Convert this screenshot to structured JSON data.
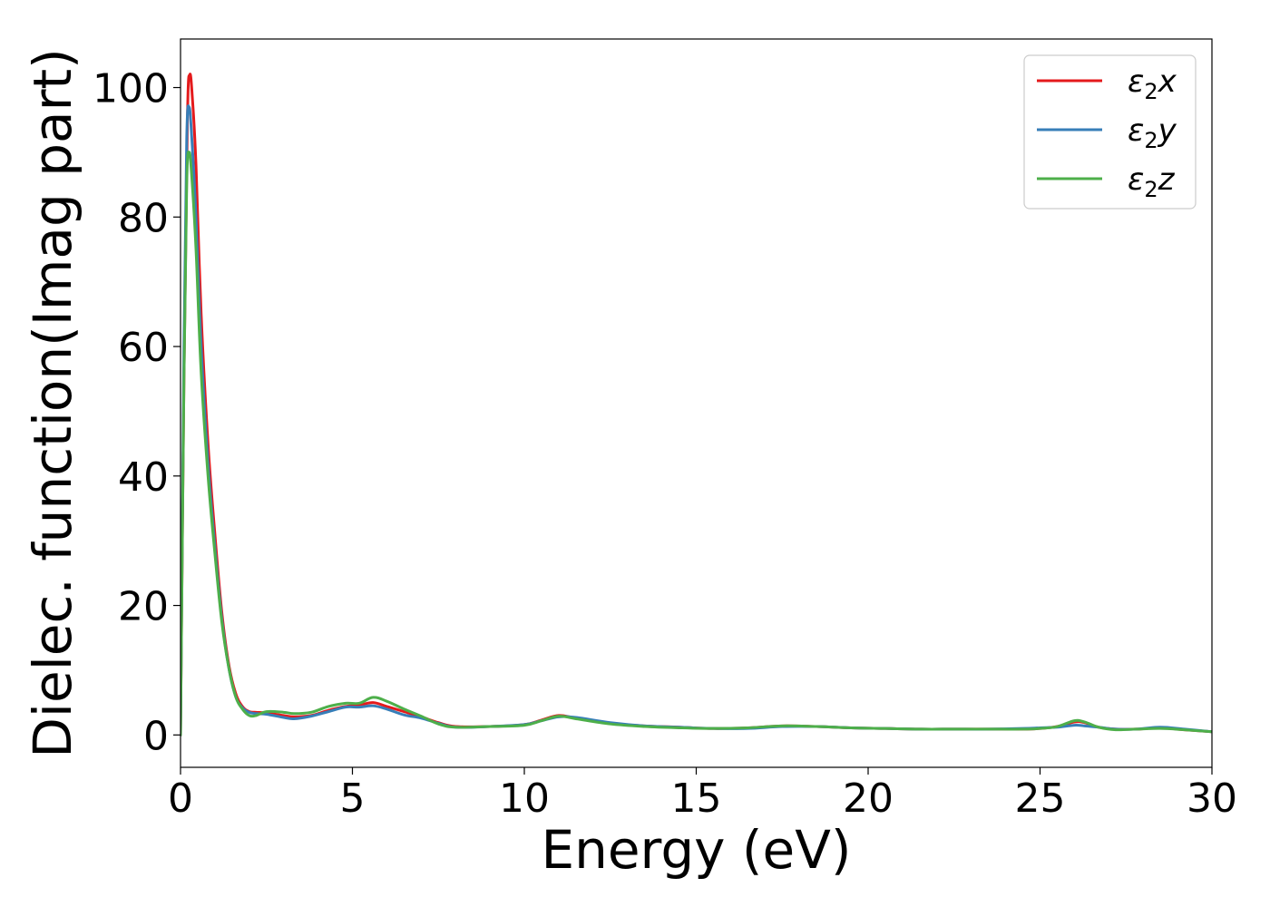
{
  "chart_data": {
    "type": "line",
    "title": "",
    "xlabel": "Energy (eV)",
    "ylabel": "Dielec. function(Imag part)",
    "xlim": [
      0,
      30
    ],
    "ylim": [
      -5,
      107.5
    ],
    "xticks": [
      0,
      5,
      10,
      15,
      20,
      25,
      30
    ],
    "yticks": [
      0,
      20,
      40,
      60,
      80,
      100
    ],
    "xtick_labels": [
      "0",
      "5",
      "10",
      "15",
      "20",
      "25",
      "30"
    ],
    "ytick_labels": [
      "0",
      "20",
      "40",
      "60",
      "80",
      "100"
    ],
    "grid": false,
    "legend_position": "top-right",
    "legend_labels": [
      "ε2x",
      "ε2y",
      "ε2z"
    ],
    "series": [
      {
        "name": "ε2x",
        "color": "#e41a1c",
        "x": [
          0.0,
          0.1,
          0.2,
          0.27,
          0.35,
          0.45,
          0.6,
          0.8,
          1.0,
          1.2,
          1.4,
          1.6,
          1.8,
          2.0,
          2.2,
          2.5,
          3.0,
          3.3,
          3.8,
          4.3,
          4.8,
          5.2,
          5.6,
          6.0,
          6.5,
          7.0,
          7.5,
          8.0,
          9.0,
          10.0,
          10.5,
          11.0,
          11.5,
          12.5,
          13.5,
          14.5,
          15.5,
          16.5,
          17.5,
          18.5,
          19.5,
          20.5,
          21.5,
          22.5,
          23.5,
          24.5,
          25.0,
          25.5,
          26.0,
          26.3,
          26.7,
          27.2,
          27.8,
          28.5,
          29.2,
          30.0
        ],
        "y": [
          0,
          55,
          95,
          102,
          98,
          88,
          65,
          45,
          31,
          19,
          11,
          6.5,
          4.4,
          3.6,
          3.5,
          3.4,
          3.0,
          2.8,
          3.0,
          3.8,
          4.4,
          4.6,
          5.0,
          4.4,
          3.6,
          2.8,
          1.9,
          1.3,
          1.3,
          1.6,
          2.3,
          3.0,
          2.6,
          1.8,
          1.4,
          1.2,
          1.0,
          1.1,
          1.4,
          1.3,
          1.1,
          1.0,
          0.9,
          0.9,
          0.9,
          0.9,
          1.0,
          1.3,
          2.0,
          1.9,
          1.2,
          0.9,
          0.9,
          1.1,
          0.8,
          0.5
        ]
      },
      {
        "name": "ε2y",
        "color": "#377eb8",
        "x": [
          0.0,
          0.1,
          0.18,
          0.25,
          0.33,
          0.45,
          0.6,
          0.8,
          1.0,
          1.2,
          1.4,
          1.6,
          1.8,
          2.0,
          2.2,
          2.5,
          3.0,
          3.3,
          3.8,
          4.3,
          4.8,
          5.2,
          5.6,
          6.0,
          6.5,
          7.0,
          7.5,
          8.0,
          9.0,
          10.0,
          10.5,
          11.0,
          11.5,
          12.5,
          13.5,
          14.5,
          15.5,
          16.5,
          17.5,
          18.5,
          19.5,
          20.5,
          21.5,
          22.5,
          23.5,
          24.5,
          25.0,
          25.5,
          26.0,
          26.3,
          26.7,
          27.2,
          27.8,
          28.5,
          29.2,
          30.0
        ],
        "y": [
          0,
          60,
          92,
          97,
          92,
          80,
          60,
          42,
          29,
          18,
          10.5,
          6.0,
          4.2,
          3.5,
          3.3,
          3.2,
          2.7,
          2.5,
          2.9,
          3.6,
          4.3,
          4.3,
          4.5,
          4.0,
          3.1,
          2.6,
          1.8,
          1.2,
          1.3,
          1.6,
          2.2,
          2.8,
          2.7,
          1.9,
          1.4,
          1.2,
          1.0,
          1.0,
          1.3,
          1.3,
          1.1,
          1.0,
          0.9,
          0.9,
          0.9,
          1.0,
          1.1,
          1.2,
          1.5,
          1.4,
          1.2,
          0.9,
          0.9,
          1.2,
          0.9,
          0.5
        ]
      },
      {
        "name": "ε2z",
        "color": "#4daf4a",
        "x": [
          0.0,
          0.1,
          0.18,
          0.25,
          0.33,
          0.45,
          0.6,
          0.8,
          1.0,
          1.2,
          1.4,
          1.6,
          1.8,
          2.0,
          2.2,
          2.5,
          3.0,
          3.3,
          3.8,
          4.3,
          4.8,
          5.2,
          5.6,
          6.0,
          6.5,
          7.0,
          7.5,
          8.0,
          9.0,
          10.0,
          10.5,
          11.0,
          11.5,
          12.5,
          13.5,
          14.5,
          15.5,
          16.5,
          17.5,
          18.5,
          19.5,
          20.5,
          21.5,
          22.5,
          23.5,
          24.5,
          25.0,
          25.5,
          26.0,
          26.3,
          26.7,
          27.2,
          27.8,
          28.5,
          29.2,
          30.0
        ],
        "y": [
          0,
          55,
          85,
          90,
          86,
          75,
          56,
          40,
          28,
          17.5,
          10.5,
          6.0,
          4.0,
          3.0,
          3.0,
          3.6,
          3.5,
          3.3,
          3.5,
          4.4,
          4.9,
          4.9,
          5.8,
          5.2,
          4.0,
          2.9,
          1.7,
          1.2,
          1.3,
          1.5,
          2.2,
          2.9,
          2.5,
          1.7,
          1.3,
          1.1,
          1.0,
          1.1,
          1.4,
          1.3,
          1.1,
          1.0,
          0.9,
          0.9,
          0.9,
          0.9,
          1.0,
          1.3,
          2.2,
          2.0,
          1.2,
          0.8,
          0.9,
          1.0,
          0.8,
          0.5
        ]
      }
    ]
  }
}
